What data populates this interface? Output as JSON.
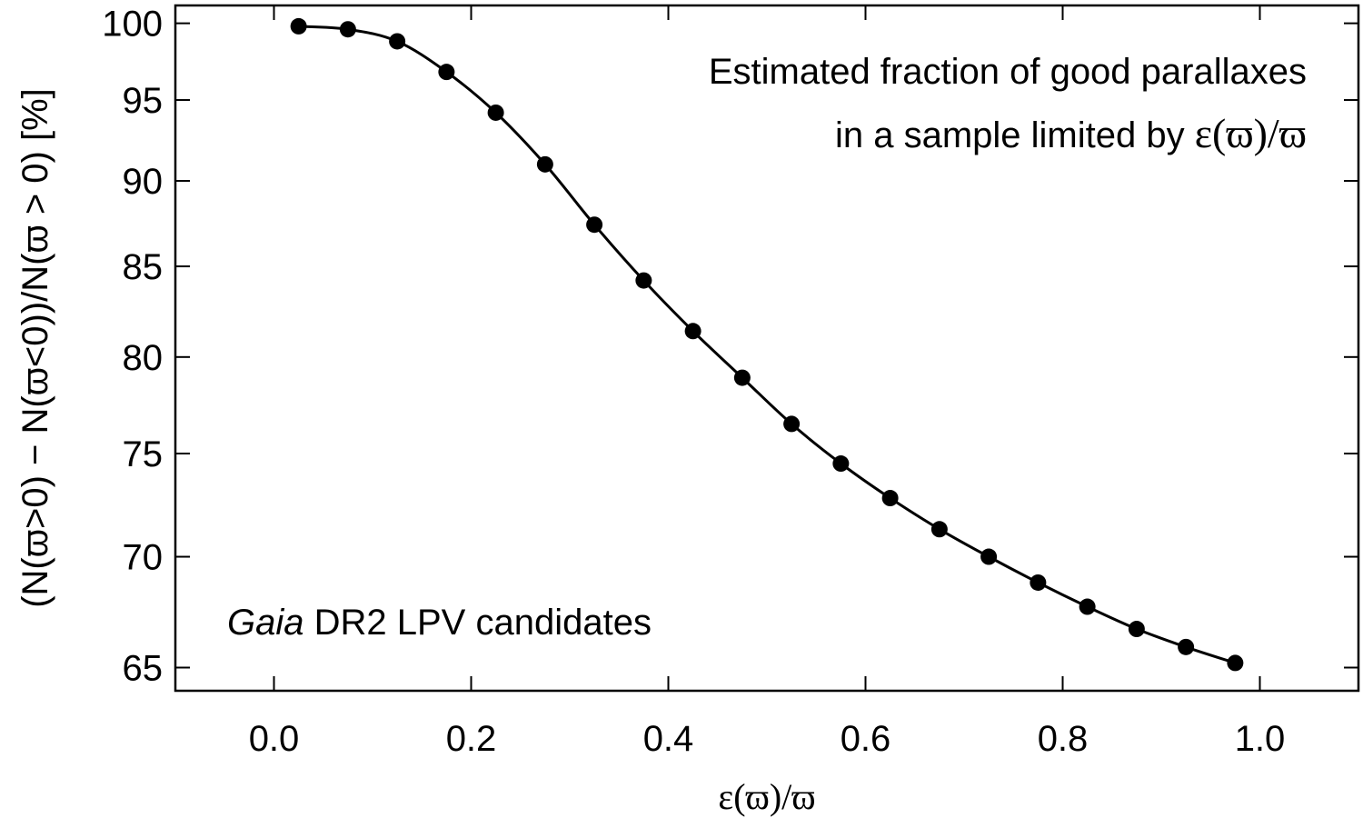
{
  "chart_data": {
    "type": "line",
    "title": "",
    "xlabel": "ε(ϖ)/ϖ",
    "ylabel": "(N(ϖ>0) − N(ϖ<0))/N(ϖ > 0) [%]",
    "xlim": [
      -0.1,
      1.1
    ],
    "ylim": [
      64,
      101.2
    ],
    "y_scale": "log",
    "x_ticks": [
      0.0,
      0.2,
      0.4,
      0.6,
      0.8,
      1.0
    ],
    "x_tick_labels": [
      "0.0",
      "0.2",
      "0.4",
      "0.6",
      "0.8",
      "1.0"
    ],
    "y_ticks": [
      65,
      70,
      75,
      80,
      85,
      90,
      95,
      100
    ],
    "y_tick_labels": [
      "65",
      "70",
      "75",
      "80",
      "85",
      "90",
      "95",
      "100"
    ],
    "grid": false,
    "annotations": {
      "top_right_line1": "Estimated fraction of good parallaxes",
      "top_right_line2_prefix": "in a sample limited by ",
      "top_right_line2_math": "ε(ϖ)/ϖ",
      "bottom_left_italic": "Gaia",
      "bottom_left_rest": " DR2 LPV candidates"
    },
    "series": [
      {
        "x": [
          0.025,
          0.075,
          0.125,
          0.175,
          0.225,
          0.275,
          0.325,
          0.375,
          0.425,
          0.475,
          0.525,
          0.575,
          0.625,
          0.675,
          0.725,
          0.775,
          0.825,
          0.875,
          0.925,
          0.975
        ],
        "values": [
          99.8,
          99.6,
          98.8,
          96.8,
          94.2,
          91.0,
          87.4,
          84.2,
          81.4,
          78.9,
          76.5,
          74.5,
          72.8,
          71.3,
          70.0,
          68.8,
          67.7,
          66.7,
          65.9,
          65.2
        ]
      }
    ]
  }
}
